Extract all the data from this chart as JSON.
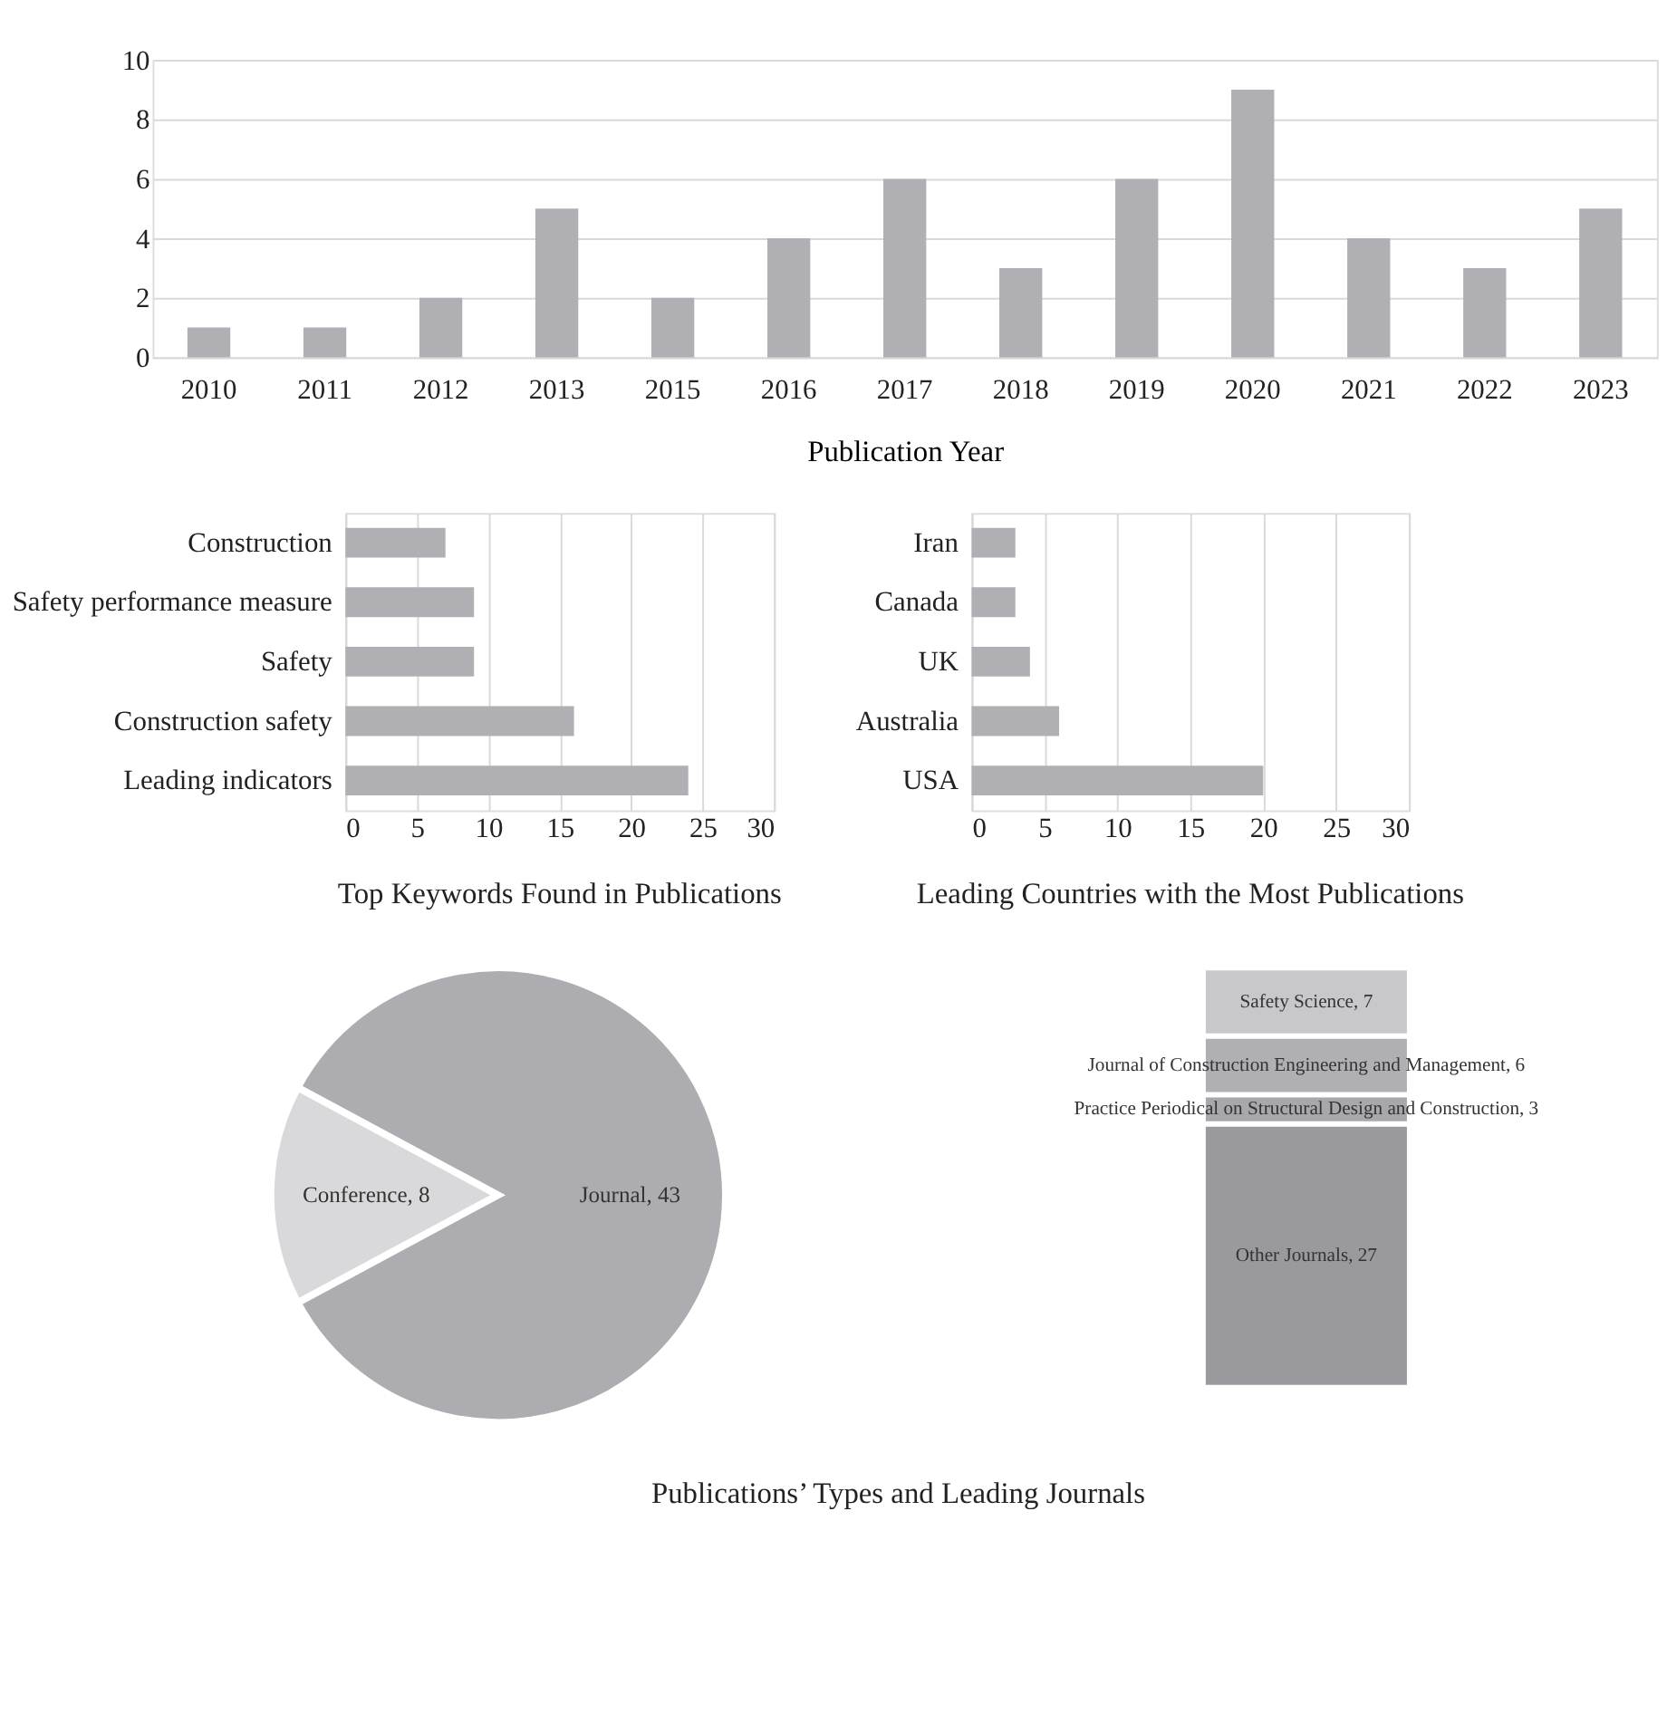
{
  "chart_data": [
    {
      "type": "bar",
      "xlabel": "Publication Year",
      "categories": [
        "2010",
        "2011",
        "2012",
        "2013",
        "2015",
        "2016",
        "2017",
        "2018",
        "2019",
        "2020",
        "2021",
        "2022",
        "2023"
      ],
      "values": [
        1,
        1,
        2,
        5,
        2,
        4,
        6,
        3,
        6,
        9,
        4,
        3,
        5
      ],
      "color": "#b0b0b4",
      "ylim": [
        0,
        10
      ],
      "yticks": [
        0,
        2,
        4,
        6,
        8,
        10
      ],
      "grid": "y"
    },
    {
      "type": "bar",
      "orientation": "horizontal",
      "title": "Top Keywords Found in Publications",
      "categories": [
        "Construction",
        "Safety performance measure",
        "Safety",
        "Construction safety",
        "Leading indicators"
      ],
      "values": [
        7,
        9,
        9,
        16,
        24
      ],
      "color": "#b0b0b4",
      "xlim": [
        0,
        30
      ],
      "xticks": [
        0,
        5,
        10,
        15,
        20,
        25,
        30
      ],
      "grid": "x"
    },
    {
      "type": "bar",
      "orientation": "horizontal",
      "title": "Leading Countries with the Most Publications",
      "categories": [
        "Iran",
        "Canada",
        "UK",
        "Australia",
        "USA"
      ],
      "values": [
        3,
        3,
        4,
        6,
        20
      ],
      "color": "#b0b0b4",
      "xlim": [
        0,
        30
      ],
      "xticks": [
        0,
        5,
        10,
        15,
        20,
        25,
        30
      ],
      "grid": "x"
    },
    {
      "type": "pie",
      "title": "Publications’ Types and Leading Journals",
      "categories": [
        null,
        null
      ],
      "values": [
        8,
        43
      ],
      "colors": [
        "#d9d9db",
        "#adadb1"
      ],
      "value_labels": [
        "Conference, 8",
        "Journal, 43"
      ]
    },
    {
      "type": "bar",
      "stacked": true,
      "categories": [
        null
      ],
      "series": [
        {
          "color": "#9a9a9e",
          "values": [
            27
          ],
          "value_labels": [
            "Other Journals, 27"
          ]
        },
        {
          "color": "#a8a8ac",
          "values": [
            3
          ],
          "value_labels": [
            "Practice Periodical on Structural Design and Construction, 3"
          ]
        },
        {
          "color": "#b0b0b4",
          "values": [
            6
          ],
          "value_labels": [
            "Journal of Construction Engineering and Management, 6"
          ]
        },
        {
          "color": "#c8c8ca",
          "values": [
            7
          ],
          "value_labels": [
            "Safety Science, 7"
          ]
        }
      ]
    }
  ]
}
